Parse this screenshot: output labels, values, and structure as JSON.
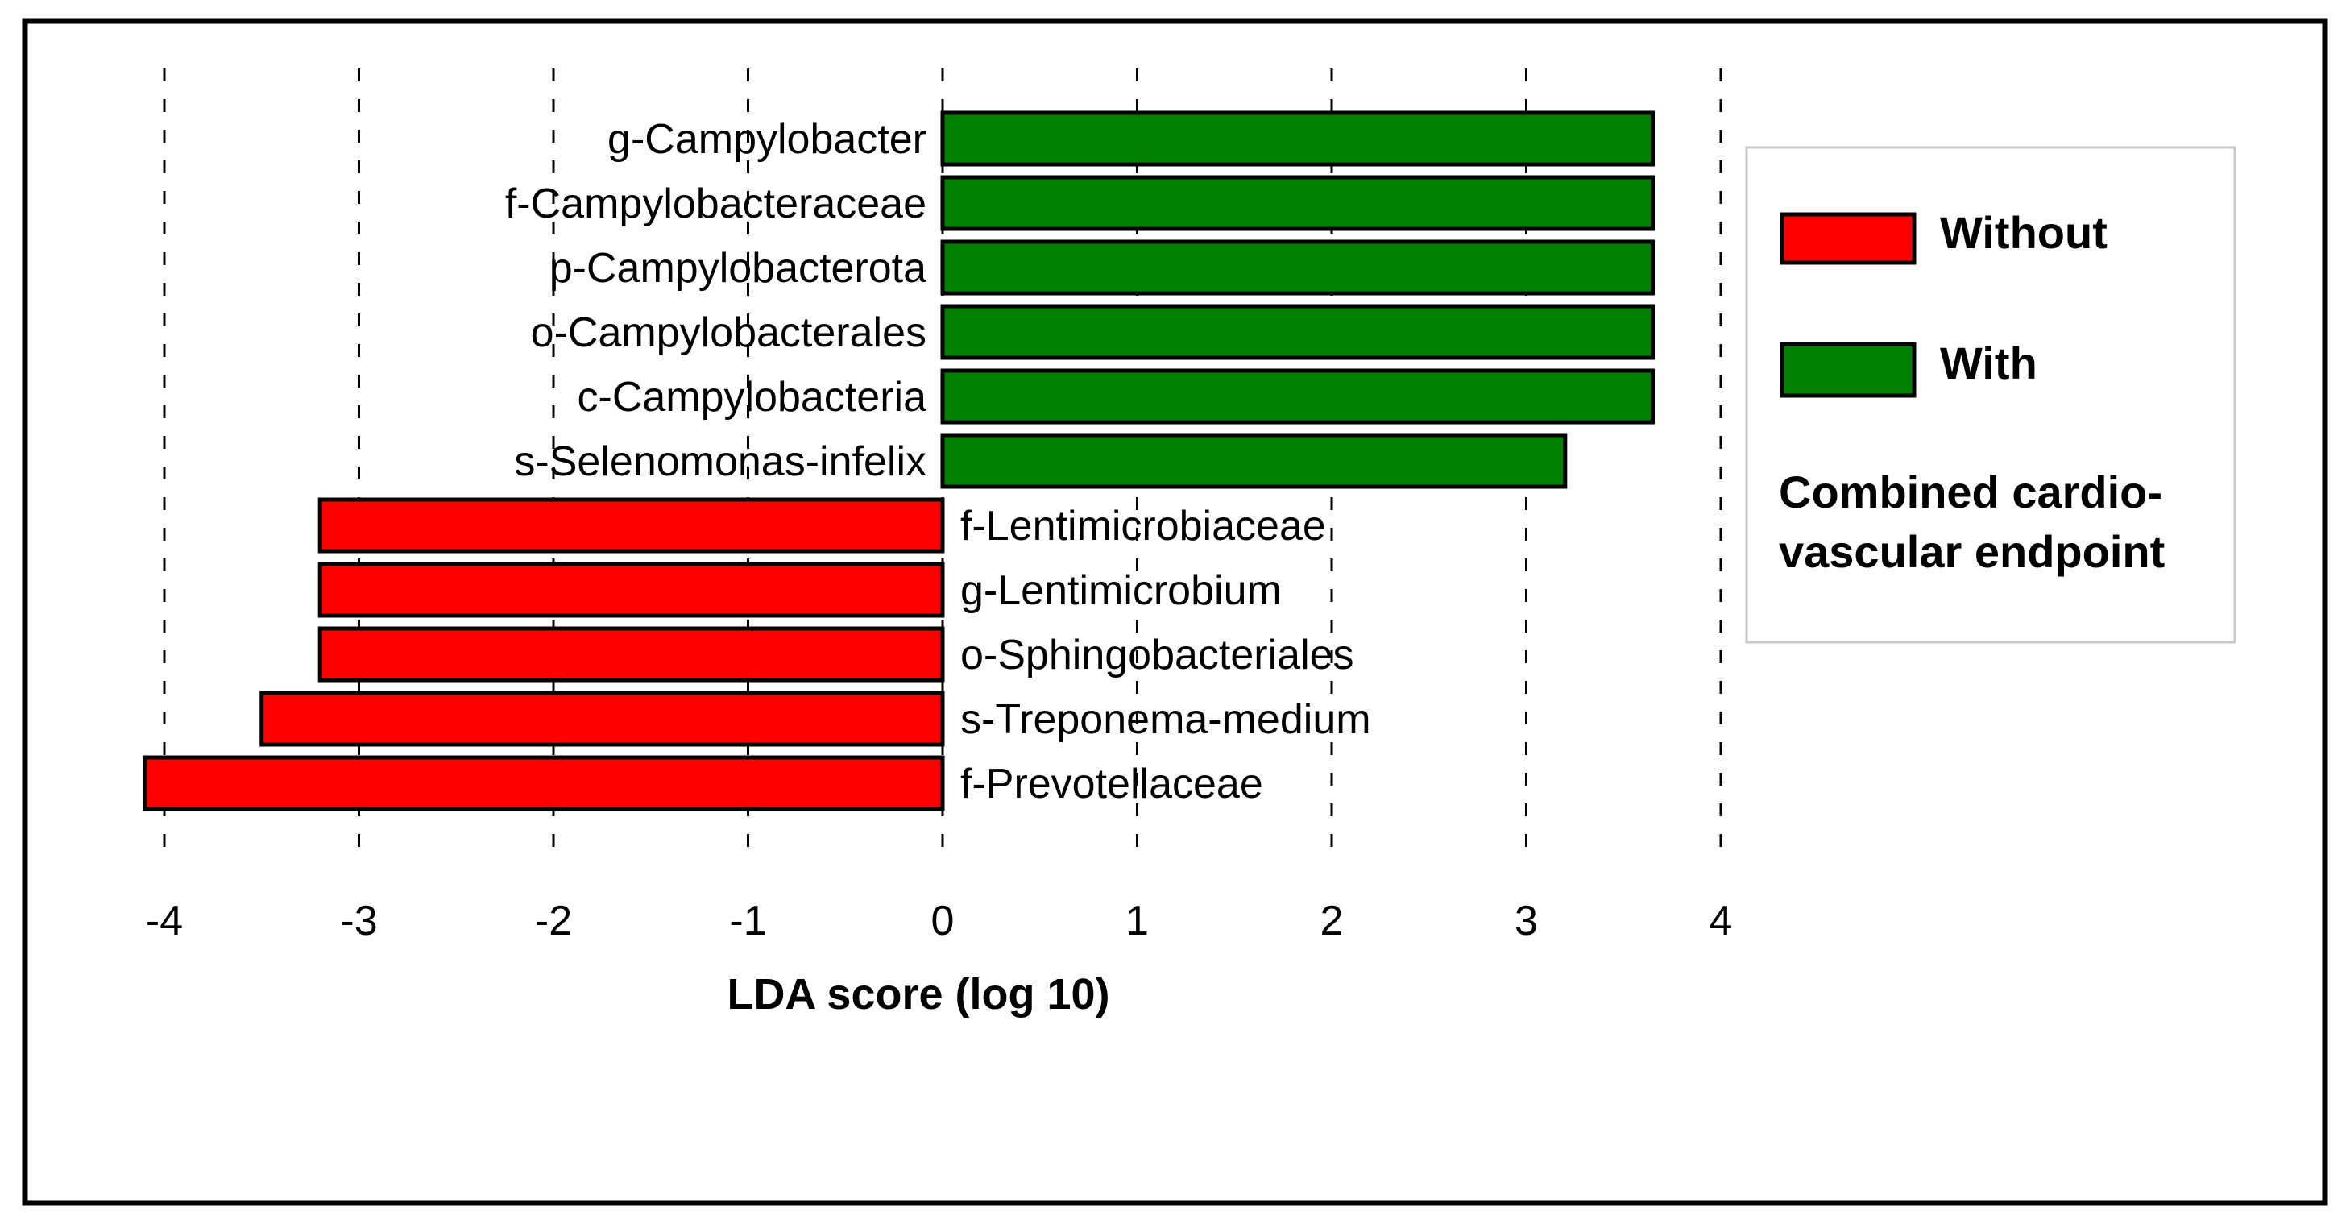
{
  "chart_data": {
    "type": "bar",
    "orientation": "horizontal",
    "categories": [
      "g-Campylobacter",
      "f-Campylobacteraceae",
      "p-Campylobacterota",
      "o-Campylobacterales",
      "c-Campylobacteria",
      "s-Selenomonas-infelix",
      "f-Lentimicrobiaceae",
      "g-Lentimicrobium",
      "o-Sphingobacteriales",
      "s-Treponema-medium",
      "f-Prevotellaceae"
    ],
    "values": [
      3.65,
      3.65,
      3.65,
      3.65,
      3.65,
      3.2,
      -3.2,
      -3.2,
      -3.2,
      -3.5,
      -4.1
    ],
    "groups": [
      "With",
      "With",
      "With",
      "With",
      "With",
      "With",
      "Without",
      "Without",
      "Without",
      "Without",
      "Without"
    ],
    "xlim": [
      -4,
      4
    ],
    "xticks": [
      "-4",
      "-3",
      "-2",
      "-1",
      "0",
      "1",
      "2",
      "3",
      "4"
    ],
    "xlabel": "LDA score (log 10)",
    "ylabel": "",
    "grid": "vertical dashed",
    "legend": {
      "placement": "right",
      "entries": [
        {
          "label": "Without",
          "color": "#ff0000"
        },
        {
          "label": "With",
          "color": "#008000"
        }
      ],
      "title_lines": [
        "Combined cardio-",
        "vascular endpoint"
      ]
    },
    "colors": {
      "Without": "#ff0000",
      "With": "#008000"
    }
  }
}
